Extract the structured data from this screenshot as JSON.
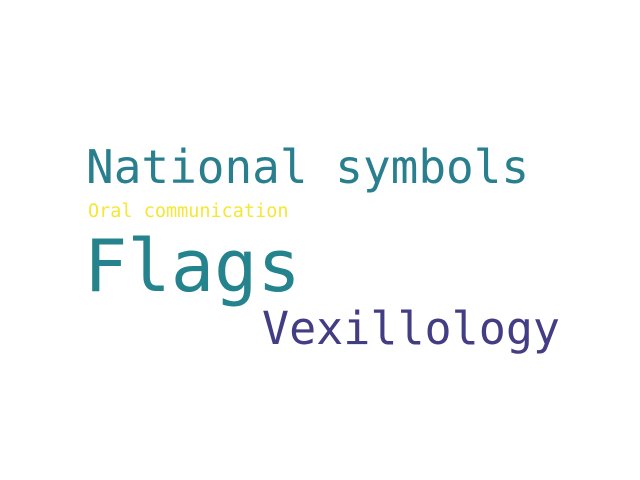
{
  "words": [
    {
      "text": "National symbols",
      "color": "#2a7f8e"
    },
    {
      "text": "Oral communication",
      "color": "#f5e735"
    },
    {
      "text": "Flags",
      "color": "#25838e"
    },
    {
      "text": "Vexillology",
      "color": "#433d84"
    }
  ]
}
